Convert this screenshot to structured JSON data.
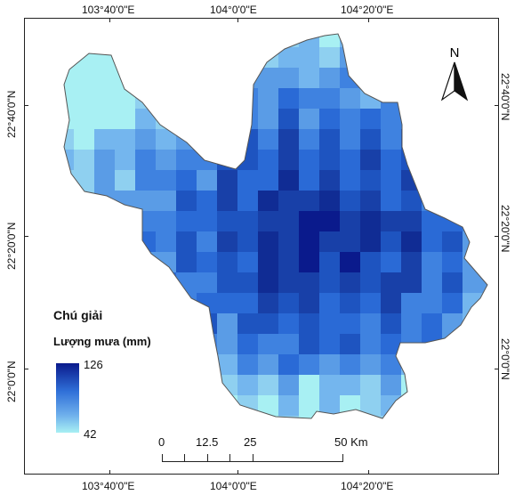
{
  "map": {
    "lon_ticks": [
      "103°40'0\"E",
      "104°0'0\"E",
      "104°20'0\"E"
    ],
    "lat_ticks": [
      "22°40'0\"N",
      "22°20'0\"N",
      "22°0'0\"N"
    ],
    "north_label": "N"
  },
  "legend": {
    "title": "Chú giải",
    "subtitle": "Lượng mưa (mm)",
    "max": "126",
    "min": "42",
    "color_max": "#0a1a8c",
    "color_min": "#a8f0f3"
  },
  "scale": {
    "labels": [
      "0",
      "12.5",
      "25",
      "50 Km"
    ]
  }
}
